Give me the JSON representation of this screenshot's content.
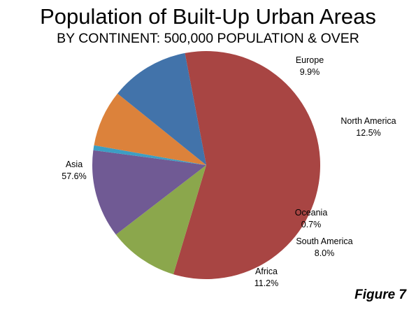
{
  "chart_data": {
    "type": "pie",
    "title": "Population of Built-Up Urban Areas",
    "subtitle": "BY CONTINENT: 500,000 POPULATION & OVER",
    "start_angle_deg": -100.8,
    "slices": [
      {
        "label": "Asia",
        "value": 57.6,
        "display": "57.6%",
        "color": "#A84543"
      },
      {
        "label": "Europe",
        "value": 9.9,
        "display": "9.9%",
        "color": "#8BA74C"
      },
      {
        "label": "North America",
        "value": 12.5,
        "display": "12.5%",
        "color": "#705A94"
      },
      {
        "label": "Oceania",
        "value": 0.7,
        "display": "0.7%",
        "color": "#3D9EC3"
      },
      {
        "label": "South America",
        "value": 8.0,
        "display": "8.0%",
        "color": "#DC823B"
      },
      {
        "label": "Africa",
        "value": 11.2,
        "display": "11.2%",
        "color": "#4273AA"
      }
    ]
  },
  "figure_label": "Figure 7"
}
